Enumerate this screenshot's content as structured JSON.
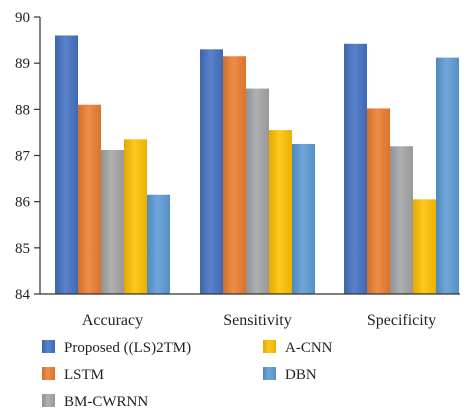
{
  "chart_data": {
    "type": "bar",
    "categories": [
      "Accuracy",
      "Sensitivity",
      "Specificity"
    ],
    "ylim": [
      84,
      90
    ],
    "yticks": [
      "84",
      "85",
      "86",
      "87",
      "88",
      "89",
      "90"
    ],
    "grid": false,
    "legend_position": "bottom",
    "series": [
      {
        "name": "Proposed ((LS)2TM)",
        "color": "#4472C4",
        "values": [
          89.6,
          89.3,
          89.42
        ]
      },
      {
        "name": "LSTM",
        "color": "#ED7D31",
        "values": [
          88.1,
          89.15,
          88.02
        ]
      },
      {
        "name": "BM-CWRNN",
        "color": "#A5A5A5",
        "values": [
          87.12,
          88.45,
          87.2
        ]
      },
      {
        "name": "A-CNN",
        "color": "#FFC000",
        "values": [
          87.35,
          87.55,
          86.05
        ]
      },
      {
        "name": "DBN",
        "color": "#5B9BD5",
        "values": [
          86.15,
          87.25,
          89.12
        ]
      }
    ]
  }
}
